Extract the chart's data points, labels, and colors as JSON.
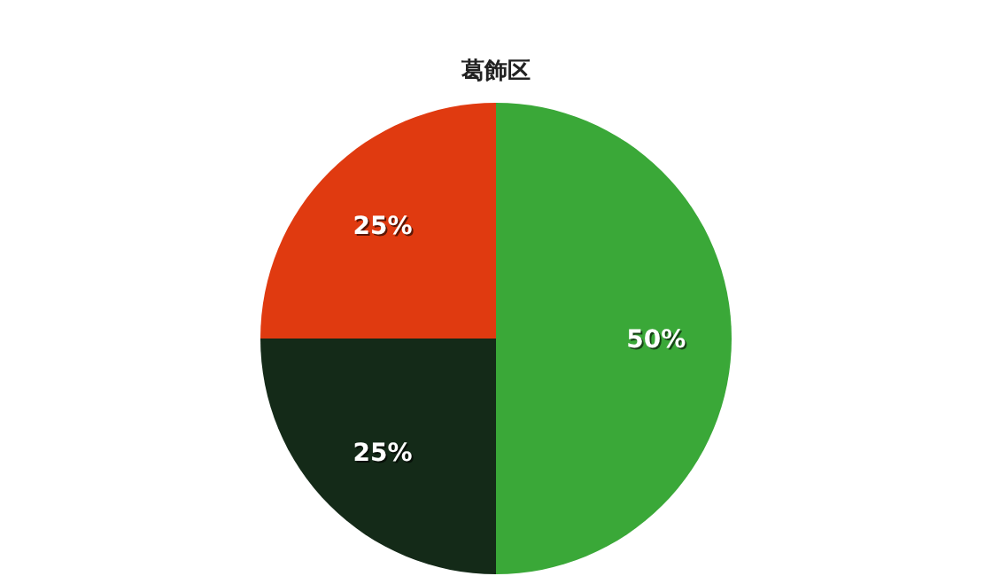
{
  "chart_data": {
    "type": "pie",
    "title": "葛飾区",
    "categories": [
      null,
      null,
      null
    ],
    "values": [
      50,
      25,
      25
    ],
    "colors": [
      "#3aa838",
      "#142a18",
      "#e03a10"
    ],
    "value_labels": [
      "50%",
      "25%",
      "25%"
    ]
  }
}
